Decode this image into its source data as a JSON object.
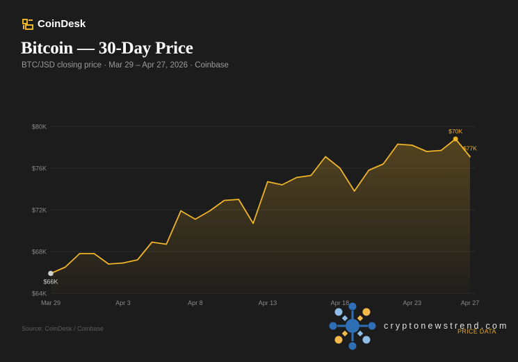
{
  "header": {
    "brand_name": "CoinDesk",
    "title": "Bitcoin — 30-Day Price",
    "subtitle": "BTC/JSD closing price · Mar 29 – Apr 27, 2026 · Coinbase"
  },
  "footer": {
    "source": "Source: CoinDesk / Coinbase"
  },
  "watermark": {
    "text": "cryptonewstrend.com",
    "subtext": "PRICE DATA"
  },
  "colors": {
    "background": "#1c1c1c",
    "line": "#f0b429",
    "grid": "#2c2c2c",
    "axis_text": "#8a8a8a",
    "start_marker": "#cfcfcf",
    "brand_accent": "#f0b429"
  },
  "chart_data": {
    "type": "area",
    "x": [
      "Mar 29",
      "Mar 30",
      "Mar 31",
      "Apr 1",
      "Apr 2",
      "Apr 3",
      "Apr 4",
      "Apr 5",
      "Apr 6",
      "Apr 7",
      "Apr 8",
      "Apr 9",
      "Apr 10",
      "Apr 11",
      "Apr 12",
      "Apr 13",
      "Apr 14",
      "Apr 15",
      "Apr 16",
      "Apr 17",
      "Apr 18",
      "Apr 19",
      "Apr 20",
      "Apr 21",
      "Apr 22",
      "Apr 23",
      "Apr 24",
      "Apr 25",
      "Apr 26",
      "Apr 27"
    ],
    "series": [
      {
        "values": [
          65.9,
          66.5,
          67.8,
          67.8,
          66.8,
          66.9,
          67.2,
          68.9,
          68.7,
          71.9,
          71.1,
          71.9,
          72.9,
          73.0,
          70.7,
          74.7,
          74.4,
          75.1,
          75.3,
          77.1,
          76.0,
          73.8,
          75.8,
          76.4,
          78.3,
          78.2,
          77.6,
          77.7,
          78.8,
          77.1
        ]
      }
    ],
    "xticks": [
      "Mar 29",
      "Apr 3",
      "Apr 8",
      "Apr 13",
      "Apr 18",
      "Apr 23",
      "Apr 27"
    ],
    "yticks": [
      64,
      68,
      72,
      76,
      80
    ],
    "ytick_labels": [
      "$64K",
      "$68K",
      "$72K",
      "$76K",
      "$80K"
    ],
    "ylim": [
      64,
      80
    ],
    "annotations": [
      {
        "label": "$66K",
        "date": "Mar 29"
      },
      {
        "label": "$70K",
        "date": "Apr 26"
      },
      {
        "label": "$77K",
        "date": "Apr 27"
      }
    ],
    "grid": true,
    "xlabel": "",
    "ylabel": ""
  }
}
